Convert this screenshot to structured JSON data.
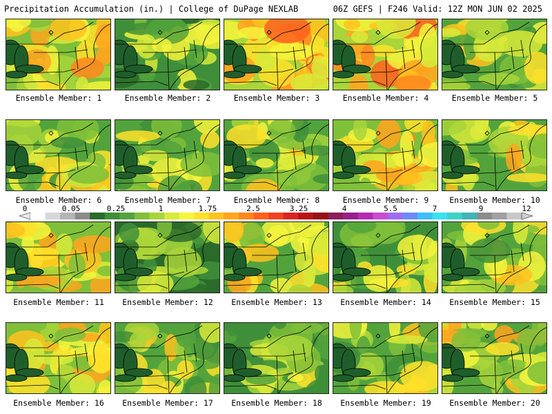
{
  "header": {
    "left": "Precipitation Accumulation (in.) | College of DuPage NEXLAB",
    "right": "06Z GEFS | F246 Valid: 12Z MON JUN 02 2025"
  },
  "colorbar": {
    "tick_labels": [
      "0",
      "0.05",
      "0.25",
      "1",
      "1.75",
      "2.5",
      "3.25",
      "4",
      "5.5",
      "7",
      "9",
      "12"
    ],
    "colors": [
      "#ffffff",
      "#d8d8d8",
      "#b4b4b4",
      "#8c8c8c",
      "#2a6b2a",
      "#3f8f3a",
      "#53a33c",
      "#7fbf3a",
      "#a8d53a",
      "#d8ea3a",
      "#f5f53c",
      "#ffe12a",
      "#ffc21e",
      "#ffa51e",
      "#ff861e",
      "#ff611e",
      "#f0421e",
      "#d92424",
      "#b81414",
      "#961014",
      "#8a1e5a",
      "#9a1f8e",
      "#b32cb4",
      "#c94cd2",
      "#a06cf0",
      "#6a8cf5",
      "#3cc0f5",
      "#3ce0f0",
      "#3cd2c8",
      "#40b4b4",
      "#8c8c8c",
      "#a0a0a0",
      "#c8c8c8"
    ],
    "ends": "arrows"
  },
  "panels": [
    {
      "label": "Ensemble Member: 1",
      "wetness": 0.62
    },
    {
      "label": "Ensemble Member: 2",
      "wetness": 0.32
    },
    {
      "label": "Ensemble Member: 3",
      "wetness": 0.82
    },
    {
      "label": "Ensemble Member: 4",
      "wetness": 0.76
    },
    {
      "label": "Ensemble Member: 5",
      "wetness": 0.45
    },
    {
      "label": "Ensemble Member: 6",
      "wetness": 0.45
    },
    {
      "label": "Ensemble Member: 7",
      "wetness": 0.42
    },
    {
      "label": "Ensemble Member: 8",
      "wetness": 0.46
    },
    {
      "label": "Ensemble Member: 9",
      "wetness": 0.64
    },
    {
      "label": "Ensemble Member: 10",
      "wetness": 0.55
    },
    {
      "label": "Ensemble Member: 11",
      "wetness": 0.6
    },
    {
      "label": "Ensemble Member: 12",
      "wetness": 0.22
    },
    {
      "label": "Ensemble Member: 13",
      "wetness": 0.52
    },
    {
      "label": "Ensemble Member: 14",
      "wetness": 0.38
    },
    {
      "label": "Ensemble Member: 15",
      "wetness": 0.48
    },
    {
      "label": "Ensemble Member: 16",
      "wetness": 0.6
    },
    {
      "label": "Ensemble Member: 17",
      "wetness": 0.44
    },
    {
      "label": "Ensemble Member: 18",
      "wetness": 0.4
    },
    {
      "label": "Ensemble Member: 19",
      "wetness": 0.46
    },
    {
      "label": "Ensemble Member: 20",
      "wetness": 0.56
    }
  ]
}
